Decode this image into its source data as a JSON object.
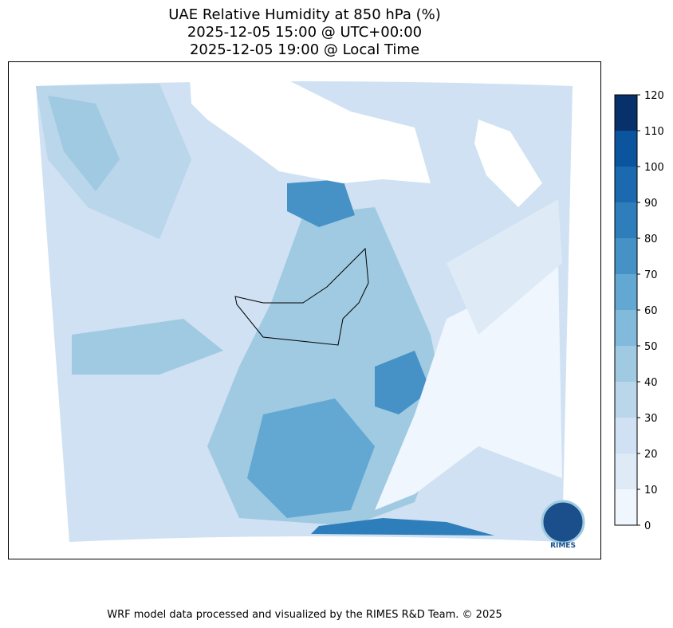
{
  "title_lines": [
    "UAE Relative Humidity at 850 hPa (%)",
    "2025-12-05 15:00 @ UTC+00:00",
    "2025-12-05 19:00 @ Local Time"
  ],
  "colorbar": {
    "ticks": [
      0,
      10,
      20,
      30,
      40,
      50,
      60,
      70,
      80,
      90,
      100,
      110,
      120
    ],
    "colors": [
      "#eff6fd",
      "#deebf7",
      "#cfe1f2",
      "#b9d6eb",
      "#9fcae1",
      "#81badb",
      "#62a8d3",
      "#4692c6",
      "#2f7ebc",
      "#1b69af",
      "#0b559f",
      "#08306b"
    ]
  },
  "logo": {
    "label": "RIMES"
  },
  "footer": "WRF model data processed and visualized by the RIMES R&D Team. © 2025"
}
